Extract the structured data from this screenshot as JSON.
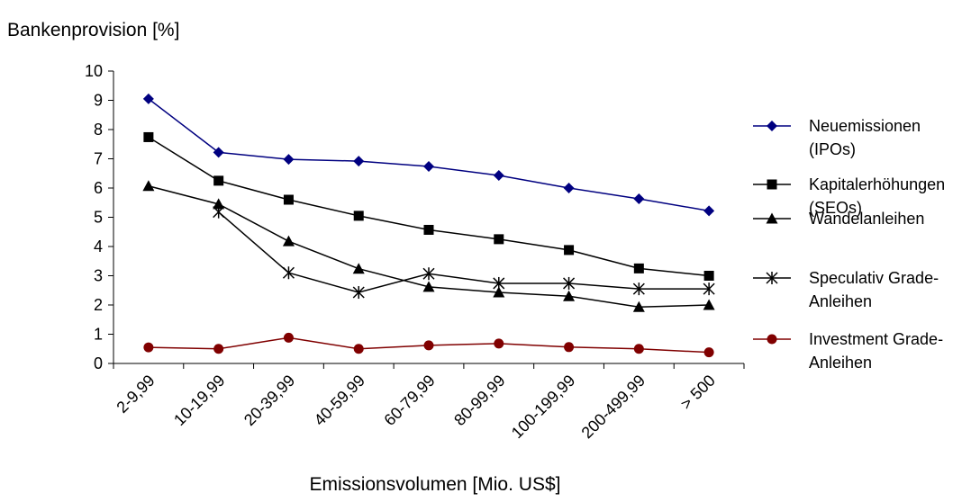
{
  "chart_data": {
    "type": "line",
    "title": "",
    "xlabel": "Emissionsvolumen [Mio. US$]",
    "ylabel": "Bankenprovision [%]",
    "ylim": [
      0,
      10
    ],
    "yticks": [
      0,
      1,
      2,
      3,
      4,
      5,
      6,
      7,
      8,
      9,
      10
    ],
    "grid": false,
    "legend_position": "right",
    "categories": [
      "2-9,99",
      "10-19,99",
      "20-39,99",
      "40-59,99",
      "60-79,99",
      "80-99,99",
      "100-199,99",
      "200-499,99",
      "> 500"
    ],
    "series": [
      {
        "name": "Neuemissionen (IPOs)",
        "legend_lines": [
          "Neuemissionen",
          "(IPOs)"
        ],
        "color": "#000080",
        "marker": "diamond",
        "values": [
          9.05,
          7.22,
          6.98,
          6.92,
          6.74,
          6.43,
          6.0,
          5.63,
          5.22
        ]
      },
      {
        "name": "Kapitalerhöhungen (SEOs)",
        "legend_lines": [
          "Kapitalerhöhungen",
          "(SEOs)"
        ],
        "color": "#000000",
        "marker": "square",
        "values": [
          7.74,
          6.25,
          5.6,
          5.05,
          4.57,
          4.25,
          3.88,
          3.25,
          3.0
        ]
      },
      {
        "name": "Wandelanleihen",
        "legend_lines": [
          "Wandelanleihen"
        ],
        "color": "#000000",
        "marker": "triangle",
        "values": [
          6.07,
          5.45,
          4.18,
          3.24,
          2.62,
          2.43,
          2.3,
          1.93,
          2.0
        ]
      },
      {
        "name": "Speculativ Grade-Anleihen",
        "legend_lines": [
          "Speculativ Grade-",
          "Anleihen"
        ],
        "color": "#000000",
        "marker": "asterisk",
        "values": [
          null,
          5.18,
          3.1,
          2.43,
          3.07,
          2.74,
          2.74,
          2.55,
          2.55
        ]
      },
      {
        "name": "Investment Grade-Anleihen",
        "legend_lines": [
          "Investment Grade-",
          "Anleihen"
        ],
        "color": "#800000",
        "marker": "circle",
        "values": [
          0.55,
          0.5,
          0.88,
          0.5,
          0.62,
          0.68,
          0.56,
          0.5,
          0.38
        ]
      }
    ]
  }
}
